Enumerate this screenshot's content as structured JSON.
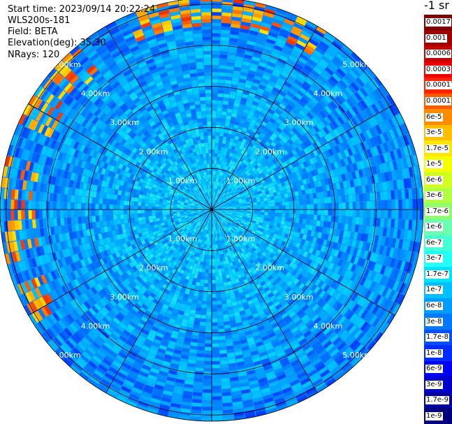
{
  "header": {
    "start_time": "Start time: 2023/09/14 20:22:24",
    "instrument": "WLS200s-181",
    "field": "Field: BETA",
    "elevation": "Elevation(deg): 35.30",
    "nrays": "NRays: 120"
  },
  "unit_label": "-1 sr",
  "colorbar": {
    "labels": [
      "0.0017",
      "0.001",
      "0.0006",
      "0.0003",
      "0.00017",
      "0.0001",
      "6e-5",
      "3e-5",
      "1.7e-5",
      "1e-5",
      "6e-6",
      "3e-6",
      "1.7e-6",
      "1e-6",
      "6e-7",
      "3e-7",
      "1.7e-7",
      "1e-7",
      "6e-8",
      "3e-8",
      "1.7e-8",
      "1e-8",
      "6e-9",
      "3e-9",
      "1.7e-9",
      "1e-9"
    ],
    "colors": [
      "#7f0000",
      "#a10000",
      "#c80000",
      "#ee0000",
      "#ff2400",
      "#ff5a00",
      "#ff8c00",
      "#ffbe00",
      "#ffe600",
      "#f5ff00",
      "#d2ff21",
      "#b0ff44",
      "#8dff6a",
      "#6affb0",
      "#47ffd4",
      "#24fff5",
      "#00e4ff",
      "#00c0ff",
      "#009cff",
      "#0078ff",
      "#0050ff",
      "#002cff",
      "#0000f5",
      "#0000cc",
      "#0000a3",
      "#00007f"
    ]
  },
  "chart_data": {
    "type": "polar-ppi",
    "field": "BETA",
    "elevation_deg": 35.3,
    "n_rays": 120,
    "range_rings_km": [
      1,
      2,
      3,
      4,
      5
    ],
    "ring_labels": [
      "1.00km",
      "2.00km",
      "3.00km",
      "4.00km",
      "5.00km"
    ],
    "max_range_km": 5.15,
    "spoke_step_deg": 30,
    "color_scale": "log",
    "color_range": [
      1e-09,
      0.0017
    ]
  }
}
